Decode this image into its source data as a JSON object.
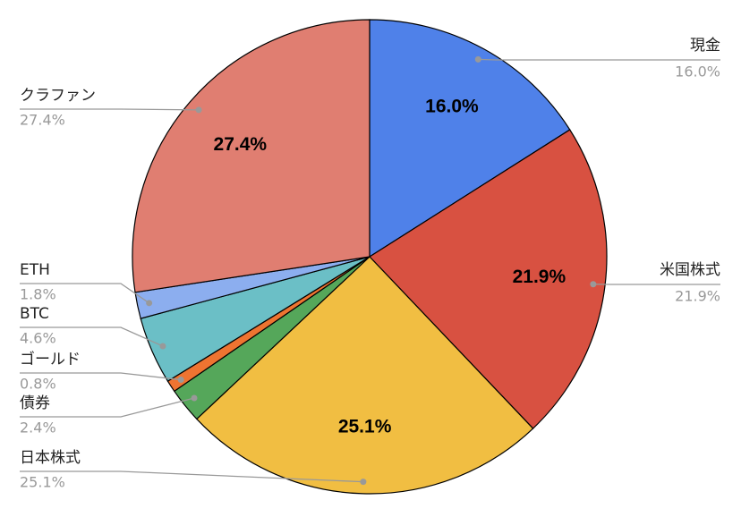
{
  "chart_data": {
    "type": "pie",
    "categories": [
      "現金",
      "米国株式",
      "日本株式",
      "債券",
      "ゴールド",
      "BTC",
      "ETH",
      "クラファン"
    ],
    "values": [
      16.0,
      21.9,
      25.1,
      2.4,
      0.8,
      4.6,
      1.8,
      27.4
    ],
    "value_labels": [
      "16.0%",
      "21.9%",
      "25.1%",
      "2.4%",
      "0.8%",
      "4.6%",
      "1.8%",
      "27.4%"
    ],
    "colors": [
      "#4f81e9",
      "#d85141",
      "#f1be42",
      "#55a75a",
      "#ee7431",
      "#6bbfc6",
      "#8caeef",
      "#e07e71"
    ]
  }
}
